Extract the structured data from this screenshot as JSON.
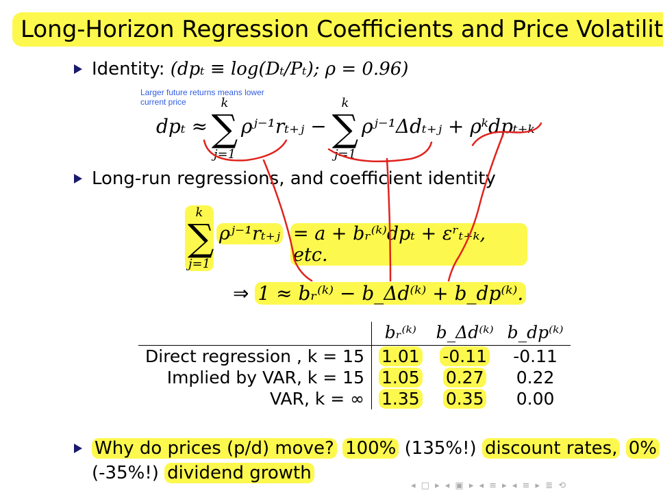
{
  "title": "Long-Horizon Regression Coefficients and Price Volatility",
  "bullet1": {
    "label": "Identity:",
    "formula": "(dpₜ ≡ log(Dₜ/Pₜ);  ρ = 0.96)"
  },
  "annotation": {
    "line1": "Larger future returns means lower",
    "line2": "current price"
  },
  "eq1": {
    "lhs": "dpₜ ≈",
    "sum_top": "k",
    "sum_bottom": "j=1",
    "term1": "ρʲ⁻¹rₜ₊ⱼ −",
    "term2": "ρʲ⁻¹Δdₜ₊ⱼ + ρᵏdpₜ₊ₖ"
  },
  "bullet2": {
    "text": "Long-run regressions, and coefficient identity"
  },
  "eq2": {
    "sum_top": "k",
    "sum_bottom": "j=1",
    "lhs_term": "ρʲ⁻¹rₜ₊ⱼ",
    "rhs": "= a + bᵣ⁽ᵏ⁾dpₜ + εʳₜ₊ₖ, etc."
  },
  "eq3": {
    "implies": "⇒",
    "text": "1 ≈ bᵣ⁽ᵏ⁾ − b_Δd⁽ᵏ⁾ + b_dp⁽ᵏ⁾."
  },
  "table": {
    "headers": [
      "",
      "bᵣ⁽ᵏ⁾",
      "b_Δd⁽ᵏ⁾",
      "b_dp⁽ᵏ⁾"
    ],
    "rows": [
      {
        "label": "Direct regression , k = 15",
        "br": "1.01",
        "bdd": "-0.11",
        "bdp": "-0.11"
      },
      {
        "label": "Implied by VAR, k = 15",
        "br": "1.05",
        "bdd": "0.27",
        "bdp": "0.22"
      },
      {
        "label": "VAR, k = ∞",
        "br": "1.35",
        "bdd": "0.35",
        "bdp": "0.00"
      }
    ]
  },
  "bullet3": {
    "q": "Why do prices (p/d) move?",
    "p1": "100%",
    "p1b": "(135%!)",
    "s1": "discount rates,",
    "p2": "0%",
    "p2b": "(-35%!)",
    "s2": "dividend growth"
  },
  "colors": {
    "highlight": "#fdf84d",
    "annotation_text": "#2f5be0",
    "pen": "#e0221c",
    "bullet": "#1a1a6e"
  },
  "icons": [
    "nav-left-icon",
    "nav-right-icon",
    "nav-section-icon",
    "nav-subsection-icon",
    "search-icon"
  ]
}
